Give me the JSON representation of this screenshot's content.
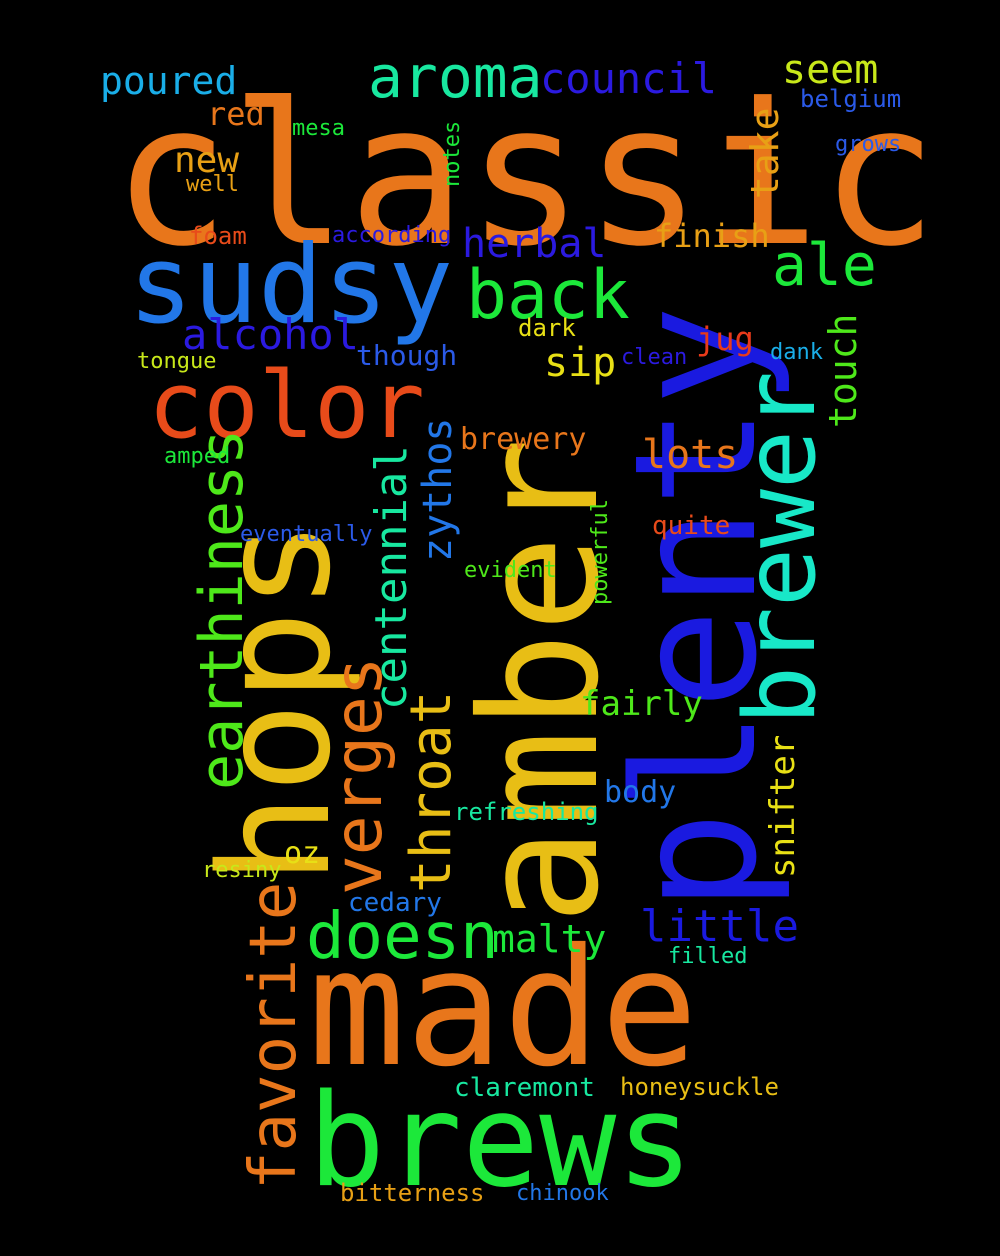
{
  "colors": {
    "background": "#000000",
    "orange": "#E8761B",
    "yellow": "#E8BE15",
    "blue": "#1A1AE0",
    "sky": "#2277E8",
    "green": "#1CE83A",
    "teal": "#18E8C8",
    "cyan": "#1ADCEA",
    "lime": "#C8E81A",
    "red_orange": "#E84B1A"
  },
  "words": [
    {
      "text": "classic",
      "color": "#E8761B",
      "weight": 1.0
    },
    {
      "text": "plenty",
      "color": "#1A1AE0",
      "weight": 0.96
    },
    {
      "text": "amber",
      "color": "#E8BE15",
      "weight": 0.95
    },
    {
      "text": "made",
      "color": "#E8761B",
      "weight": 0.86
    },
    {
      "text": "hops",
      "color": "#E8BE15",
      "weight": 0.8
    },
    {
      "text": "brews",
      "color": "#1CE83A",
      "weight": 0.7
    },
    {
      "text": "sudsy",
      "color": "#2277E8",
      "weight": 0.6
    },
    {
      "text": "brewer",
      "color": "#18E8C8",
      "weight": 0.56
    },
    {
      "text": "color",
      "color": "#E84B1A",
      "weight": 0.52
    },
    {
      "text": "back",
      "color": "#1CE83A",
      "weight": 0.4
    },
    {
      "text": "doesn",
      "color": "#1CE83A",
      "weight": 0.37
    },
    {
      "text": "verges",
      "color": "#E8761B",
      "weight": 0.37
    },
    {
      "text": "favorite",
      "color": "#E8761B",
      "weight": 0.36
    },
    {
      "text": "earthiness",
      "color": "#4EE81A",
      "weight": 0.34
    },
    {
      "text": "aroma",
      "color": "#18E8A0",
      "weight": 0.33
    },
    {
      "text": "ale",
      "color": "#1CE83A",
      "weight": 0.33
    },
    {
      "text": "throat",
      "color": "#E8BE15",
      "weight": 0.32
    },
    {
      "text": "little",
      "color": "#1A1AE0",
      "weight": 0.25
    },
    {
      "text": "centennial",
      "color": "#18E8A0",
      "weight": 0.25
    },
    {
      "text": "alcohol",
      "color": "#2B1AE0",
      "weight": 0.24
    },
    {
      "text": "council",
      "color": "#2B1AE0",
      "weight": 0.24
    },
    {
      "text": "zythos",
      "color": "#2277E8",
      "weight": 0.23
    },
    {
      "text": "herbal",
      "color": "#2B1AE0",
      "weight": 0.22
    },
    {
      "text": "seem",
      "color": "#C8E81A",
      "weight": 0.22
    },
    {
      "text": "sip",
      "color": "#E8E015",
      "weight": 0.22
    },
    {
      "text": "lots",
      "color": "#E8761B",
      "weight": 0.22
    },
    {
      "text": "malty",
      "color": "#1CE83A",
      "weight": 0.22
    },
    {
      "text": "poured",
      "color": "#1AAEE8",
      "weight": 0.21
    },
    {
      "text": "touch",
      "color": "#4EE81A",
      "weight": 0.2
    },
    {
      "text": "take",
      "color": "#E8A015",
      "weight": 0.2
    },
    {
      "text": "new",
      "color": "#E8A015",
      "weight": 0.19
    },
    {
      "text": "snifter",
      "color": "#E8E015",
      "weight": 0.18
    },
    {
      "text": "fairly",
      "color": "#4EE81A",
      "weight": 0.18
    },
    {
      "text": "finish",
      "color": "#E8A015",
      "weight": 0.17
    },
    {
      "text": "brewery",
      "color": "#E8761B",
      "weight": 0.17
    },
    {
      "text": "body",
      "color": "#2277E8",
      "weight": 0.17
    },
    {
      "text": "red",
      "color": "#E8761B",
      "weight": 0.16
    },
    {
      "text": "oz",
      "color": "#E8E015",
      "weight": 0.15
    },
    {
      "text": "though",
      "color": "#2B5AE8",
      "weight": 0.15
    },
    {
      "text": "jug",
      "color": "#E83A1A",
      "weight": 0.15
    },
    {
      "text": "honeysuckle",
      "color": "#E8BE15",
      "weight": 0.14
    },
    {
      "text": "claremont",
      "color": "#18E8A0",
      "weight": 0.14
    },
    {
      "text": "cedary",
      "color": "#2277E8",
      "weight": 0.14
    },
    {
      "text": "quite",
      "color": "#E84B1A",
      "weight": 0.13
    },
    {
      "text": "refreshing",
      "color": "#18E8A0",
      "weight": 0.13
    },
    {
      "text": "bitterness",
      "color": "#E8A015",
      "weight": 0.13
    },
    {
      "text": "dark",
      "color": "#E8E015",
      "weight": 0.12
    },
    {
      "text": "foam",
      "color": "#E84B1A",
      "weight": 0.12
    },
    {
      "text": "belgium",
      "color": "#2B5AE8",
      "weight": 0.12
    },
    {
      "text": "grows",
      "color": "#2B5AE8",
      "weight": 0.12
    },
    {
      "text": "according",
      "color": "#2B1AE0",
      "weight": 0.12
    },
    {
      "text": "filled",
      "color": "#18E8A0",
      "weight": 0.12
    },
    {
      "text": "evident",
      "color": "#4EE81A",
      "weight": 0.12
    },
    {
      "text": "powerful",
      "color": "#4EE81A",
      "weight": 0.12
    },
    {
      "text": "dank",
      "color": "#1AAEE8",
      "weight": 0.11
    },
    {
      "text": "clean",
      "color": "#2B1AE0",
      "weight": 0.11
    },
    {
      "text": "tongue",
      "color": "#C8E81A",
      "weight": 0.11
    },
    {
      "text": "amped",
      "color": "#1CE83A",
      "weight": 0.11
    },
    {
      "text": "eventually",
      "color": "#2B5AE8",
      "weight": 0.11
    },
    {
      "text": "chinook",
      "color": "#2277E8",
      "weight": 0.11
    },
    {
      "text": "well",
      "color": "#E8A015",
      "weight": 0.11
    },
    {
      "text": "mesa",
      "color": "#1CE83A",
      "weight": 0.11
    },
    {
      "text": "notes",
      "color": "#1CE83A",
      "weight": 0.11
    },
    {
      "text": "resiny",
      "color": "#C8E81A",
      "weight": 0.11
    }
  ]
}
